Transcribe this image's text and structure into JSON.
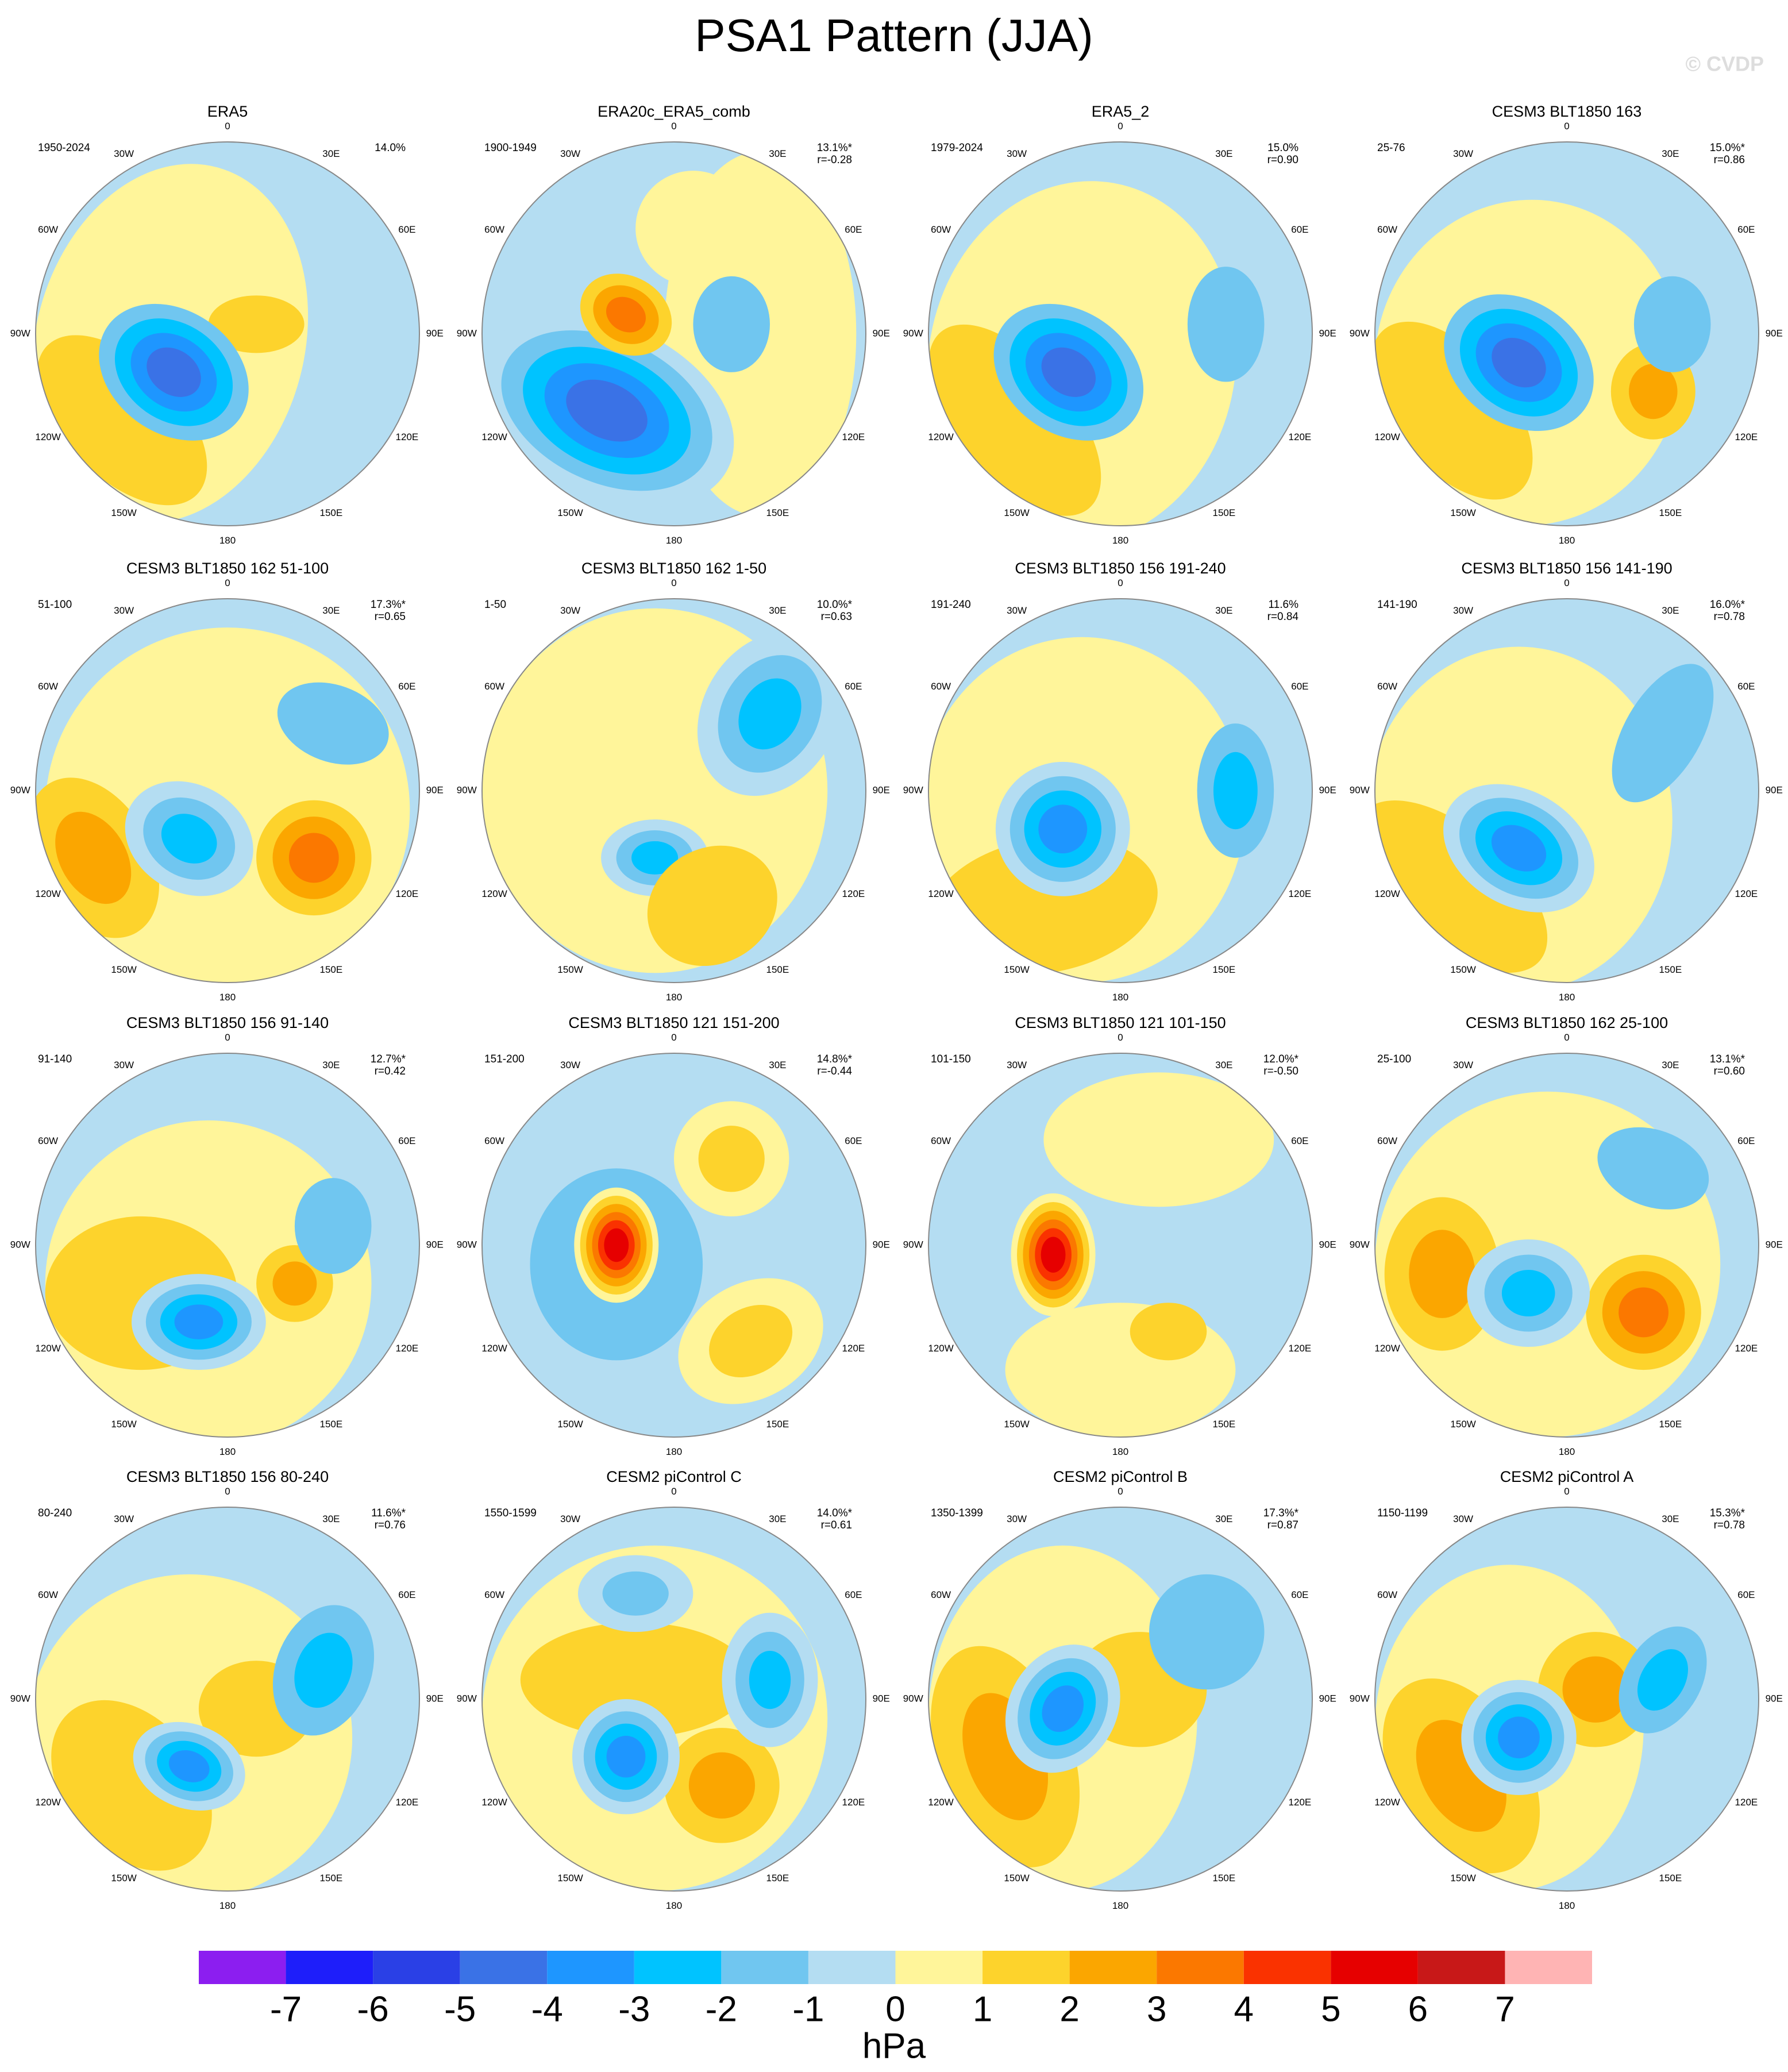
{
  "title": "PSA1 Pattern (JJA)",
  "watermark": "© CVDP",
  "longitudes": [
    "0",
    "30E",
    "60E",
    "90E",
    "120E",
    "150E",
    "180",
    "150W",
    "120W",
    "90W",
    "60W",
    "30W"
  ],
  "panels": [
    {
      "title": "ERA5",
      "years": "1950-2024",
      "pct": "14.0%"
    },
    {
      "title": "ERA20c_ERA5_comb",
      "years": "1900-1949",
      "pct": "13.1%*",
      "r": "r=-0.28"
    },
    {
      "title": "ERA5_2",
      "years": "1979-2024",
      "pct": "15.0%",
      "r": "r=0.90"
    },
    {
      "title": "CESM3 BLT1850 163",
      "years": "25-76",
      "pct": "15.0%*",
      "r": "r=0.86"
    },
    {
      "title": "CESM3 BLT1850 162 51-100",
      "years": "51-100",
      "pct": "17.3%*",
      "r": "r=0.65"
    },
    {
      "title": "CESM3 BLT1850 162 1-50",
      "years": "1-50",
      "pct": "10.0%*",
      "r": "r=0.63"
    },
    {
      "title": "CESM3 BLT1850 156 191-240",
      "years": "191-240",
      "pct": "11.6%",
      "r": "r=0.84"
    },
    {
      "title": "CESM3 BLT1850 156 141-190",
      "years": "141-190",
      "pct": "16.0%*",
      "r": "r=0.78"
    },
    {
      "title": "CESM3 BLT1850 156 91-140",
      "years": "91-140",
      "pct": "12.7%*",
      "r": "r=0.42"
    },
    {
      "title": "CESM3 BLT1850 121 151-200",
      "years": "151-200",
      "pct": "14.8%*",
      "r": "r=-0.44"
    },
    {
      "title": "CESM3 BLT1850 121 101-150",
      "years": "101-150",
      "pct": "12.0%*",
      "r": "r=-0.50"
    },
    {
      "title": "CESM3 BLT1850 162 25-100",
      "years": "25-100",
      "pct": "13.1%*",
      "r": "r=0.60"
    },
    {
      "title": "CESM3 BLT1850 156 80-240",
      "years": "80-240",
      "pct": "11.6%*",
      "r": "r=0.76"
    },
    {
      "title": "CESM2 piControl C",
      "years": "1550-1599",
      "pct": "14.0%*",
      "r": "r=0.61"
    },
    {
      "title": "CESM2 piControl B",
      "years": "1350-1399",
      "pct": "17.3%*",
      "r": "r=0.87"
    },
    {
      "title": "CESM2 piControl A",
      "years": "1150-1199",
      "pct": "15.3%*",
      "r": "r=0.78"
    }
  ],
  "colorbar": {
    "colors": [
      "#8c1ef0",
      "#1e1efa",
      "#2a40e6",
      "#3a72e6",
      "#1e96ff",
      "#00c3ff",
      "#70c6f0",
      "#b4ddf2",
      "#fff59a",
      "#fdd32c",
      "#fba600",
      "#fb7800",
      "#fa3200",
      "#e60000",
      "#c81818",
      "#ffb4b4"
    ],
    "ticks": [
      -7,
      -6,
      -5,
      -4,
      -3,
      -2,
      -1,
      0,
      1,
      2,
      3,
      4,
      5,
      6,
      7
    ],
    "label": "hPa"
  }
}
